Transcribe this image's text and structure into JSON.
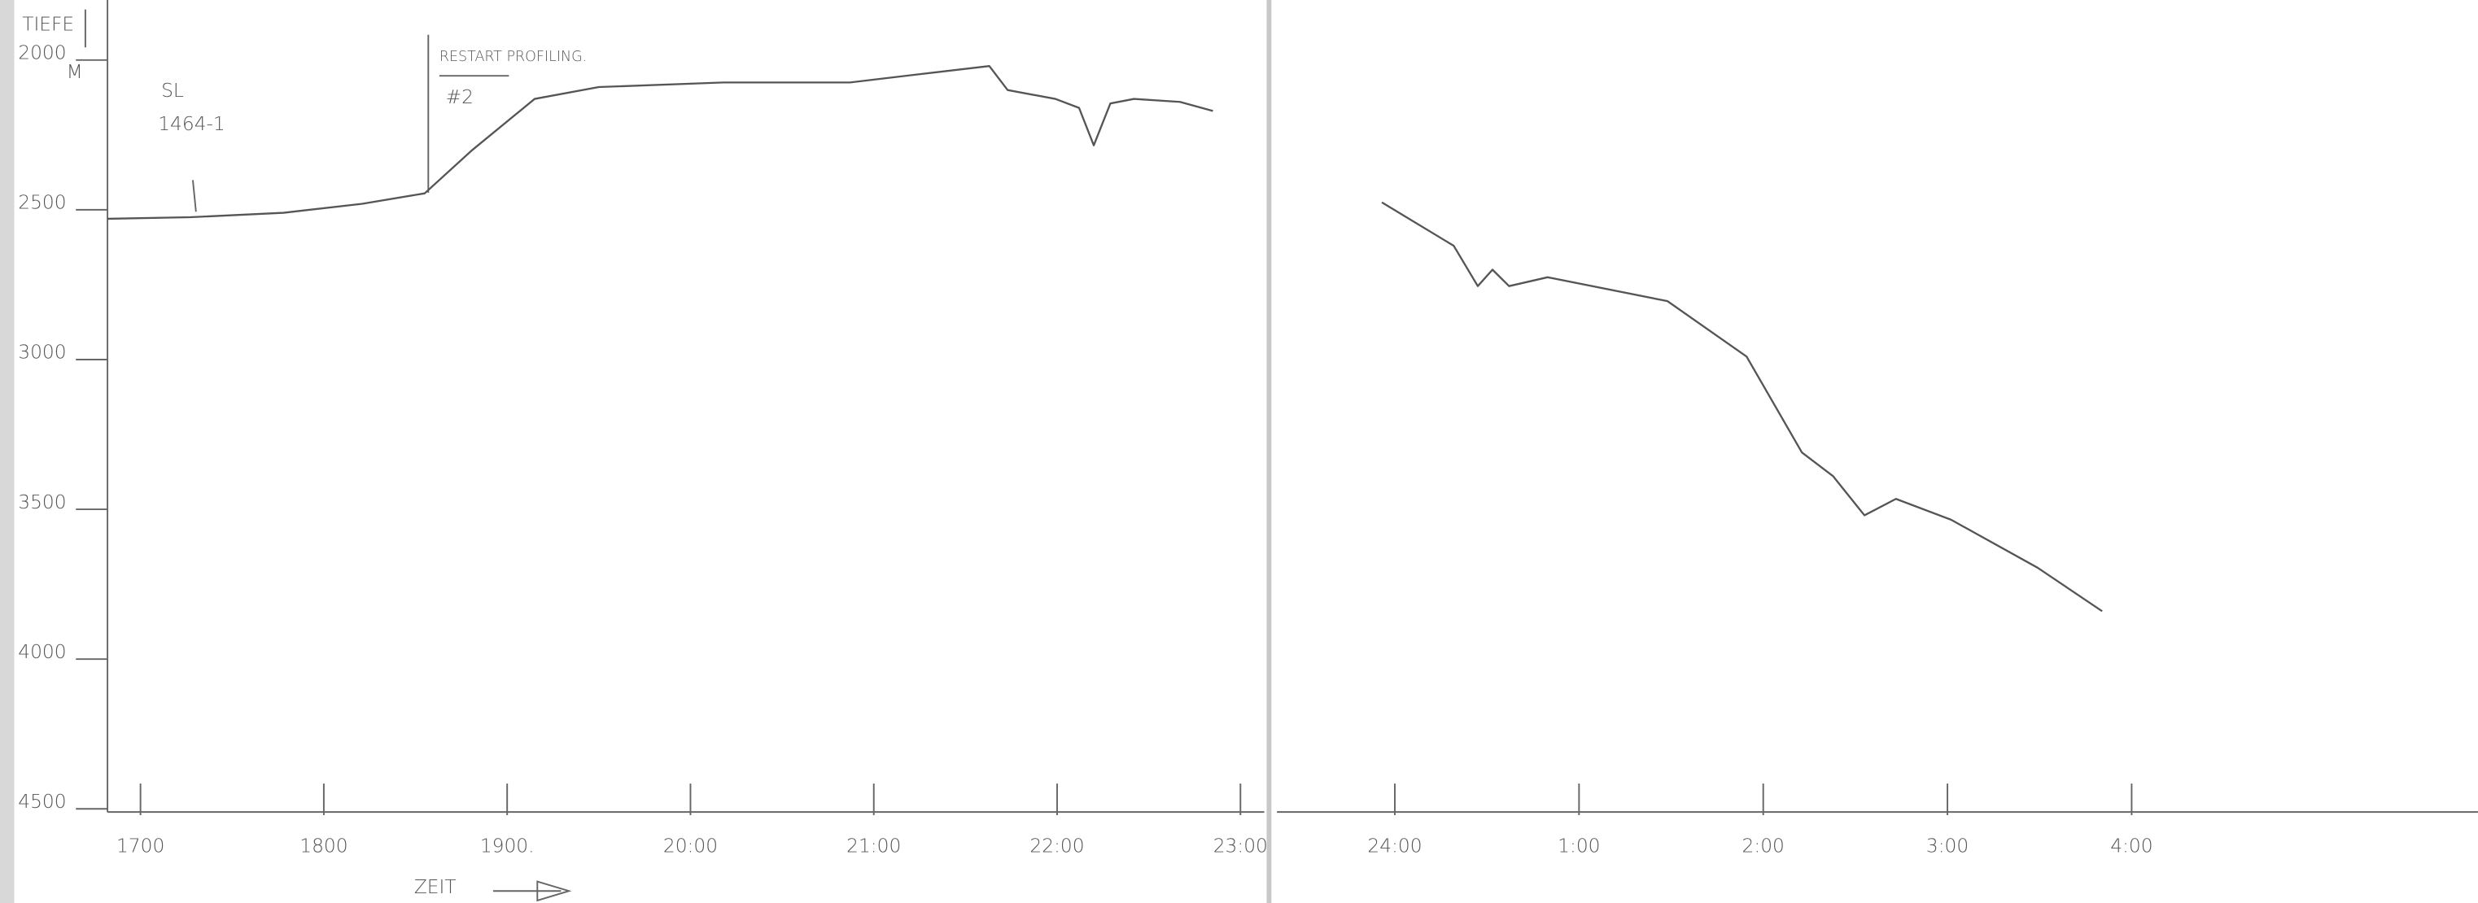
{
  "chart_data": [
    {
      "type": "line",
      "ylabel": "TIEFE",
      "yunit": "M",
      "xlabel": "ZEIT",
      "annotations": [
        "SL",
        "1464-1",
        "RESTART PROFILING.",
        "#2"
      ],
      "x": [
        16.82,
        17.27,
        17.78,
        18.21,
        18.55,
        18.81,
        19.15,
        19.5,
        20.18,
        20.87,
        21.21,
        21.63,
        21.73,
        21.99,
        22.12,
        22.2,
        22.29,
        22.42,
        22.67,
        22.85
      ],
      "values": [
        2530,
        2525,
        2510,
        2480,
        2445,
        2300,
        2130,
        2090,
        2075,
        2075,
        2050,
        2020,
        2100,
        2130,
        2160,
        2285,
        2145,
        2130,
        2140,
        2170
      ],
      "color": "#555555",
      "xlim": [
        16.82,
        23.13
      ],
      "ylim": [
        2000,
        4500
      ],
      "y_inverted": true,
      "xticks": [
        {
          "value": 17,
          "label": "1700"
        },
        {
          "value": 18,
          "label": "1800"
        },
        {
          "value": 19,
          "label": "1900."
        },
        {
          "value": 20,
          "label": "20:00"
        },
        {
          "value": 21,
          "label": "21:00"
        },
        {
          "value": 22,
          "label": "22:00"
        },
        {
          "value": 23,
          "label": "23:00"
        }
      ],
      "yticks": [
        2000,
        2500,
        3000,
        3500,
        4000,
        4500
      ]
    },
    {
      "type": "line",
      "x": [
        23.93,
        24.32,
        24.45,
        24.53,
        24.62,
        24.83,
        25.48,
        25.91,
        26.21,
        26.38,
        26.55,
        26.72,
        27.02,
        27.49,
        27.84
      ],
      "values": [
        2475,
        2620,
        2755,
        2700,
        2755,
        2725,
        2805,
        2990,
        3310,
        3390,
        3520,
        3465,
        3535,
        3695,
        3840
      ],
      "color": "#555555",
      "xlim": [
        23.36,
        29.88
      ],
      "ylim": [
        2000,
        4500
      ],
      "y_inverted": true,
      "xticks": [
        {
          "value": 24,
          "label": "24:00"
        },
        {
          "value": 25,
          "label": "1:00"
        },
        {
          "value": 26,
          "label": "2:00"
        },
        {
          "value": 27,
          "label": "3:00"
        },
        {
          "value": 28,
          "label": "4:00"
        }
      ]
    }
  ]
}
